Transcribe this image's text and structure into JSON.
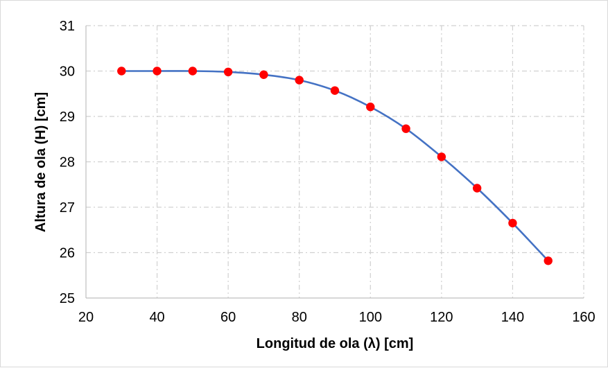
{
  "chart_data": {
    "type": "line",
    "title": "",
    "xlabel": "Longitud de ola (λ) [cm]",
    "ylabel": "Altura de ola (H) [cm]",
    "xlim": [
      20,
      160
    ],
    "ylim": [
      25,
      31
    ],
    "xticks": [
      20,
      40,
      60,
      80,
      100,
      120,
      140,
      160
    ],
    "yticks": [
      25,
      26,
      27,
      28,
      29,
      30,
      31
    ],
    "grid": true,
    "legend": "none",
    "series": [
      {
        "line_color": "#4472c4",
        "marker_color": "#ff0000",
        "smooth": true,
        "x": [
          30,
          40,
          50,
          60,
          70,
          80,
          90,
          100,
          110,
          120,
          130,
          140,
          150
        ],
        "y": [
          30.0,
          30.0,
          30.0,
          29.98,
          29.92,
          29.8,
          29.57,
          29.21,
          28.73,
          28.11,
          27.42,
          26.65,
          25.82
        ]
      }
    ]
  }
}
